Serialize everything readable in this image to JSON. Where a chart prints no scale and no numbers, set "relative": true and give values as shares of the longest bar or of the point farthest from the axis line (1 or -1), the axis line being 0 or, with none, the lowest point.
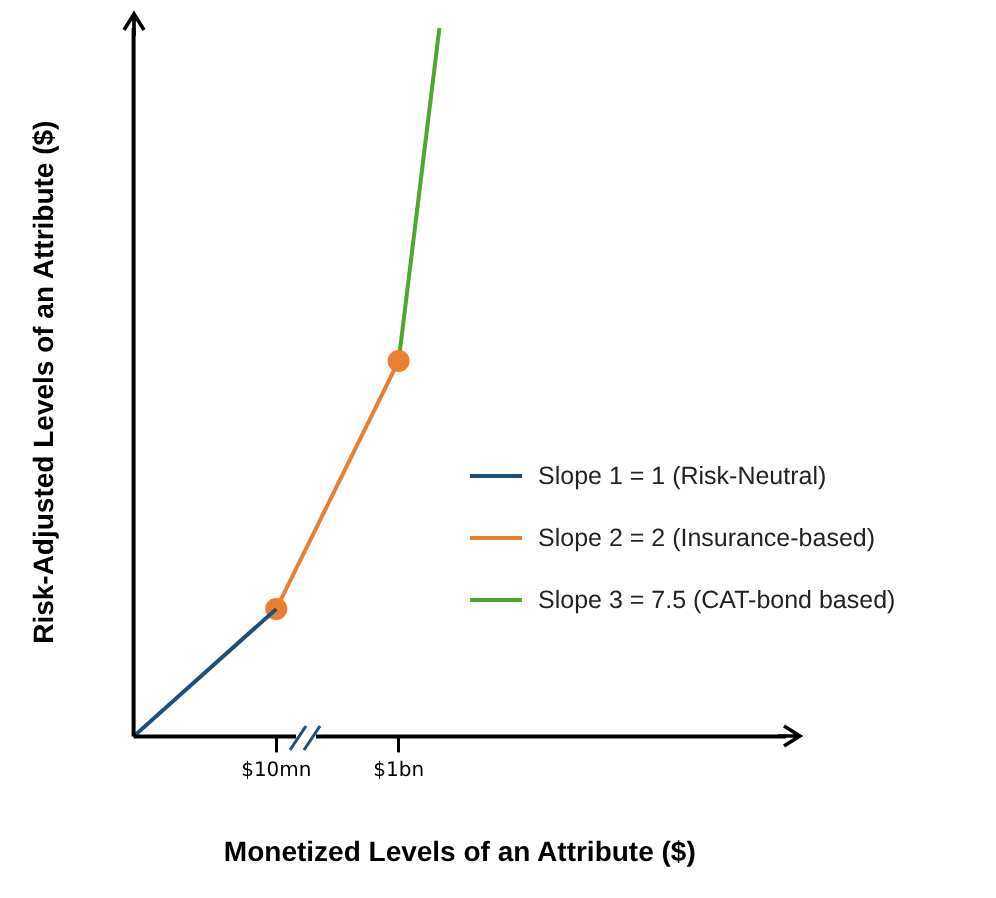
{
  "chart_data": {
    "type": "line",
    "relative": true,
    "xlabel": "Monetized Levels of an Attribute ($)",
    "ylabel": "Risk-Adjusted Levels of an Attribute ($)",
    "categories": [
      null,
      null,
      null,
      null,
      null,
      null,
      null,
      "$10mn",
      null,
      null,
      null,
      null,
      null,
      "$1bn",
      null,
      null,
      null,
      null,
      null,
      null,
      null,
      null,
      null,
      null,
      null,
      null,
      null,
      null,
      null,
      null,
      null,
      null,
      null
    ],
    "series": [
      {
        "name": "Slope 1 = 1 (Risk-Neutral)",
        "color": "#1f4e79",
        "marker": "none",
        "values": [
          0,
          null,
          null,
          null,
          null,
          null,
          null,
          0.18,
          null,
          null,
          null,
          null,
          null,
          null,
          null,
          null,
          null,
          null,
          null,
          null,
          null,
          null,
          null,
          null,
          null,
          null,
          null,
          null,
          null,
          null,
          null,
          null,
          null
        ]
      },
      {
        "name": "Slope 2 = 2 (Insurance-based)",
        "color": "#ed7d31",
        "marker": "circle",
        "values": [
          null,
          null,
          null,
          null,
          null,
          null,
          null,
          0.18,
          null,
          null,
          null,
          null,
          null,
          0.53,
          null,
          null,
          null,
          null,
          null,
          null,
          null,
          null,
          null,
          null,
          null,
          null,
          null,
          null,
          null,
          null,
          null,
          null,
          null
        ]
      },
      {
        "name": "Slope 3 = 7.5 (CAT-bond based)",
        "color": "#4ea72e",
        "marker": "none",
        "values": [
          null,
          null,
          null,
          null,
          null,
          null,
          null,
          null,
          null,
          null,
          null,
          null,
          null,
          0.53,
          null,
          1,
          null,
          null,
          null,
          null,
          null,
          null,
          null,
          null,
          null,
          null,
          null,
          null,
          null,
          null,
          null,
          null,
          null
        ]
      }
    ],
    "legend": "right",
    "grid": false,
    "line_style": "solid"
  }
}
